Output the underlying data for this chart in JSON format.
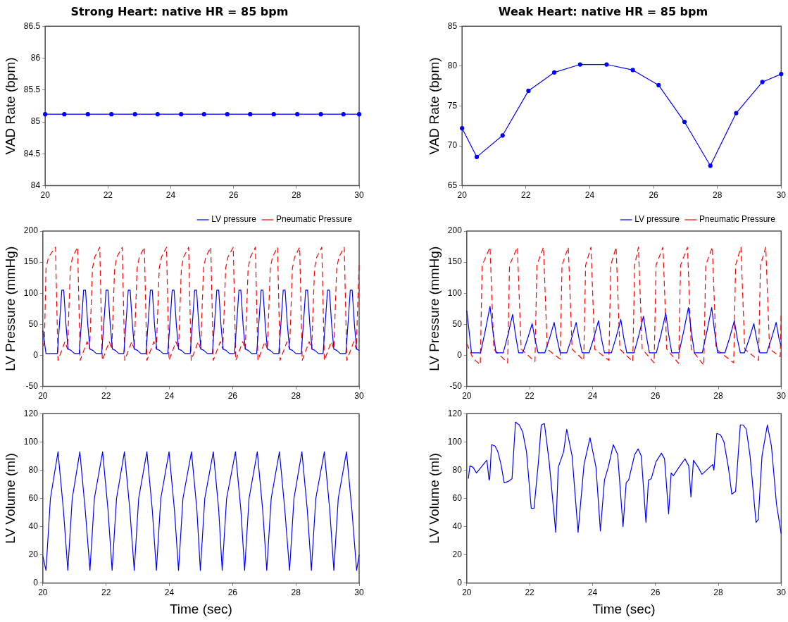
{
  "chart_data": [
    {
      "type": "line",
      "title": "Strong Heart: native HR = 85 bpm",
      "ylabel": "VAD Rate (bpm)",
      "xlim": [
        20,
        30
      ],
      "xticks": [
        20,
        22,
        24,
        26,
        28,
        30
      ],
      "ylim": [
        84,
        86.5
      ],
      "yticks": [
        84,
        84.5,
        85,
        85.5,
        86,
        86.5
      ],
      "grid": false,
      "legend": false,
      "marker": "circle",
      "series": [
        {
          "color": "#0000ff",
          "x": [
            20,
            20.61,
            21.36,
            22.11,
            22.86,
            23.58,
            24.33,
            25.06,
            25.8,
            26.53,
            27.28,
            28.03,
            28.78,
            29.5,
            30
          ],
          "values": [
            85.12,
            85.12,
            85.12,
            85.12,
            85.12,
            85.12,
            85.12,
            85.12,
            85.12,
            85.12,
            85.12,
            85.12,
            85.12,
            85.12,
            85.12
          ]
        }
      ]
    },
    {
      "type": "line",
      "title": "Weak Heart: native HR = 85 bpm",
      "ylabel": "VAD Rate (bpm)",
      "xlim": [
        20,
        30
      ],
      "xticks": [
        20,
        22,
        24,
        26,
        28,
        30
      ],
      "ylim": [
        65,
        85
      ],
      "yticks": [
        65,
        70,
        75,
        80,
        85
      ],
      "grid": false,
      "legend": false,
      "marker": "circle",
      "series": [
        {
          "color": "#0000ff",
          "x": [
            20,
            20.46,
            21.27,
            22.08,
            22.89,
            23.7,
            24.53,
            25.35,
            26.16,
            26.97,
            27.78,
            28.59,
            29.41,
            30
          ],
          "values": [
            72.2,
            68.6,
            71.3,
            76.9,
            79.2,
            80.2,
            80.2,
            79.5,
            77.6,
            73.0,
            67.5,
            74.1,
            78.0,
            79.0
          ]
        }
      ]
    },
    {
      "type": "line",
      "ylabel": "LV Pressure (mmHg)",
      "xlim": [
        20,
        30
      ],
      "xticks": [
        20,
        22,
        24,
        26,
        28,
        30
      ],
      "ylim": [
        -50,
        200
      ],
      "yticks": [
        -50,
        0,
        50,
        100,
        150,
        200
      ],
      "grid": false,
      "legend": "top right",
      "marker": "none",
      "series": [
        {
          "name": "LV pressure",
          "color": "#0000ff",
          "line_style": "solid",
          "x": [
            20,
            20.1,
            20.46,
            20.54,
            20.6,
            20.66,
            20.73,
            20.8,
            20.89,
            21.0,
            21.15,
            21.23,
            21.29,
            21.35,
            21.42,
            21.49,
            21.58,
            21.69,
            21.86,
            21.94,
            22.0,
            22.06,
            22.13,
            22.2,
            22.29,
            22.4,
            22.56,
            22.64,
            22.7,
            22.76,
            22.83,
            22.9,
            22.99,
            23.1,
            23.26,
            23.34,
            23.4,
            23.46,
            23.53,
            23.6,
            23.69,
            23.8,
            23.95,
            24.03,
            24.09,
            24.15,
            24.22,
            24.29,
            24.38,
            24.49,
            24.66,
            24.74,
            24.8,
            24.86,
            24.93,
            25.0,
            25.09,
            25.2,
            25.36,
            25.44,
            25.5,
            25.56,
            25.63,
            25.7,
            25.79,
            25.9,
            26.06,
            26.14,
            26.2,
            26.26,
            26.33,
            26.4,
            26.49,
            26.6,
            26.76,
            26.84,
            26.9,
            26.96,
            27.03,
            27.1,
            27.19,
            27.3,
            27.46,
            27.54,
            27.6,
            27.66,
            27.73,
            27.8,
            27.89,
            28.0,
            28.17,
            28.25,
            28.31,
            28.37,
            28.44,
            28.51,
            28.6,
            28.71,
            28.86,
            28.94,
            29.0,
            29.06,
            29.13,
            29.2,
            29.29,
            29.4,
            29.58,
            29.66,
            29.72,
            29.78,
            29.85,
            29.92,
            30.0
          ],
          "values": [
            40,
            3,
            3,
            60,
            105,
            105,
            50,
            10,
            8,
            3,
            3,
            60,
            105,
            105,
            50,
            10,
            8,
            3,
            3,
            60,
            105,
            105,
            50,
            10,
            8,
            3,
            3,
            60,
            105,
            105,
            50,
            10,
            8,
            3,
            3,
            60,
            105,
            105,
            50,
            10,
            8,
            3,
            3,
            60,
            105,
            105,
            50,
            10,
            8,
            3,
            3,
            60,
            105,
            105,
            50,
            10,
            8,
            3,
            3,
            60,
            105,
            105,
            50,
            10,
            8,
            3,
            3,
            60,
            105,
            105,
            50,
            10,
            8,
            3,
            3,
            60,
            105,
            105,
            50,
            10,
            8,
            3,
            3,
            60,
            105,
            105,
            50,
            10,
            8,
            3,
            3,
            60,
            105,
            105,
            50,
            10,
            8,
            3,
            3,
            60,
            105,
            105,
            50,
            10,
            8,
            3,
            3,
            60,
            105,
            105,
            50,
            10,
            8
          ]
        },
        {
          "name": "Pneumatic Pressure",
          "color": "#ff0000",
          "line_style": "dashed",
          "x": [
            20,
            20.05,
            20.1,
            20.18,
            20.4,
            20.48,
            20.7,
            20.78,
            20.87,
            20.94,
            21.1,
            21.18,
            21.4,
            21.48,
            21.57,
            21.64,
            21.8,
            21.88,
            22.1,
            22.18,
            22.27,
            22.34,
            22.51,
            22.59,
            22.81,
            22.89,
            22.98,
            23.05,
            23.21,
            23.29,
            23.51,
            23.59,
            23.68,
            23.75,
            23.91,
            23.99,
            24.21,
            24.29,
            24.38,
            24.45,
            24.61,
            24.69,
            24.91,
            24.99,
            25.08,
            25.15,
            25.31,
            25.39,
            25.61,
            25.69,
            25.78,
            25.85,
            26.02,
            26.1,
            26.32,
            26.4,
            26.49,
            26.56,
            26.72,
            26.8,
            27.02,
            27.1,
            27.19,
            27.26,
            27.42,
            27.5,
            27.72,
            27.8,
            27.89,
            27.96,
            28.12,
            28.2,
            28.42,
            28.5,
            28.59,
            28.66,
            28.82,
            28.9,
            29.12,
            29.2,
            29.29,
            29.36,
            29.53,
            29.61,
            29.83,
            29.91,
            30.0
          ],
          "values": [
            15,
            20,
            140,
            158,
            174,
            -8,
            22,
            10,
            140,
            158,
            174,
            -8,
            22,
            10,
            140,
            158,
            174,
            -8,
            22,
            10,
            140,
            158,
            174,
            -8,
            22,
            10,
            140,
            158,
            174,
            -8,
            22,
            10,
            140,
            158,
            174,
            -8,
            22,
            10,
            140,
            158,
            174,
            -8,
            22,
            10,
            140,
            158,
            174,
            -8,
            22,
            10,
            140,
            158,
            174,
            -8,
            22,
            10,
            140,
            158,
            174,
            -8,
            22,
            10,
            140,
            158,
            174,
            -8,
            22,
            10,
            140,
            158,
            174,
            -8,
            22,
            10,
            140,
            158,
            174,
            -8,
            22,
            10,
            140,
            158,
            174,
            -8,
            22,
            10,
            150
          ]
        }
      ]
    },
    {
      "type": "line",
      "ylabel": "LV Pressure (mmHg)",
      "xlim": [
        20,
        30
      ],
      "xticks": [
        20,
        22,
        24,
        26,
        28,
        30
      ],
      "ylim": [
        -50,
        200
      ],
      "yticks": [
        -50,
        0,
        50,
        100,
        150,
        200
      ],
      "grid": false,
      "legend": "top right",
      "marker": "none",
      "series": [
        {
          "name": "LV pressure",
          "color": "#0000ff",
          "line_style": "solid",
          "x": [
            20,
            20.05,
            20.15,
            20.44,
            20.59,
            20.74,
            20.83,
            20.93,
            21.16,
            21.31,
            21.46,
            21.55,
            21.65,
            21.78,
            21.93,
            22.08,
            22.17,
            22.27,
            22.48,
            22.63,
            22.78,
            22.87,
            22.97,
            23.18,
            23.33,
            23.48,
            23.57,
            23.67,
            23.89,
            24.04,
            24.19,
            24.28,
            24.38,
            24.6,
            24.75,
            24.9,
            24.99,
            25.09,
            25.32,
            25.47,
            25.62,
            25.71,
            25.81,
            26.03,
            26.18,
            26.33,
            26.42,
            26.52,
            26.75,
            26.9,
            27.05,
            27.14,
            27.24,
            27.49,
            27.64,
            27.79,
            27.88,
            27.98,
            28.21,
            28.36,
            28.51,
            28.6,
            28.7,
            28.83,
            28.98,
            29.13,
            29.22,
            29.32,
            29.54,
            29.69,
            29.84,
            29.93,
            30.0
          ],
          "values": [
            72,
            50,
            4,
            4,
            40,
            79,
            40,
            4,
            4,
            33,
            66,
            33,
            4,
            4,
            26,
            51,
            26,
            4,
            4,
            27,
            53,
            27,
            4,
            4,
            27,
            53,
            27,
            4,
            4,
            28,
            56,
            28,
            4,
            4,
            29,
            58,
            29,
            4,
            4,
            32,
            63,
            32,
            4,
            4,
            34,
            68,
            34,
            4,
            4,
            39,
            77,
            39,
            4,
            4,
            39,
            77,
            39,
            4,
            4,
            28,
            56,
            28,
            4,
            4,
            26,
            51,
            26,
            4,
            4,
            27,
            53,
            27,
            15
          ]
        },
        {
          "name": "Pneumatic Pressure",
          "color": "#ff0000",
          "line_style": "dashed",
          "x": [
            20,
            20.2,
            20.43,
            20.49,
            20.74,
            20.86,
            21.3,
            21.36,
            21.61,
            21.73,
            22.17,
            22.23,
            22.44,
            22.56,
            22.97,
            23.03,
            23.23,
            23.35,
            23.72,
            23.78,
            23.95,
            24.07,
            24.52,
            24.58,
            24.75,
            24.87,
            25.28,
            25.34,
            25.46,
            25.58,
            25.96,
            26.02,
            26.24,
            26.36,
            26.74,
            26.8,
            27.02,
            27.14,
            27.54,
            27.6,
            27.81,
            27.93,
            28.49,
            28.55,
            28.72,
            28.84,
            29.28,
            29.34,
            29.51,
            29.63,
            29.97,
            30.0
          ],
          "values": [
            19,
            -5,
            -15,
            145,
            174,
            10,
            -12,
            145,
            174,
            10,
            -10,
            145,
            174,
            10,
            -6,
            145,
            174,
            10,
            -8,
            145,
            174,
            10,
            -8,
            145,
            174,
            10,
            -10,
            145,
            174,
            10,
            -12,
            145,
            174,
            10,
            -13,
            145,
            174,
            10,
            -16,
            145,
            174,
            10,
            -12,
            145,
            174,
            10,
            -8,
            145,
            174,
            10,
            -2,
            70
          ]
        }
      ]
    },
    {
      "type": "line",
      "ylabel": "LV Volume (ml)",
      "xlabel": "Time (sec)",
      "xlim": [
        20,
        30
      ],
      "xticks": [
        20,
        22,
        24,
        26,
        28,
        30
      ],
      "ylim": [
        0,
        120
      ],
      "yticks": [
        0,
        20,
        40,
        60,
        80,
        100,
        120
      ],
      "grid": false,
      "legend": false,
      "marker": "none",
      "series": [
        {
          "color": "#0000ff",
          "x": [
            20.0,
            20.1,
            20.24,
            20.48,
            20.65,
            20.79,
            20.93,
            21.17,
            21.34,
            21.49,
            21.63,
            21.89,
            22.06,
            22.19,
            22.33,
            22.58,
            22.75,
            22.89,
            23.03,
            23.29,
            23.46,
            23.59,
            23.73,
            23.99,
            24.16,
            24.29,
            24.43,
            24.7,
            24.87,
            24.98,
            25.12,
            25.39,
            25.56,
            25.67,
            25.81,
            26.09,
            26.26,
            26.38,
            26.52,
            26.78,
            26.95,
            27.08,
            27.22,
            27.48,
            27.65,
            27.8,
            27.94,
            28.19,
            28.36,
            28.49,
            28.63,
            28.9,
            29.07,
            29.2,
            29.34,
            29.6,
            29.77,
            29.92,
            30.0
          ],
          "values": [
            19,
            9,
            60,
            93,
            52,
            9,
            60,
            93,
            52,
            9,
            60,
            93,
            52,
            9,
            60,
            93,
            52,
            9,
            60,
            93,
            52,
            9,
            60,
            93,
            52,
            9,
            60,
            93,
            52,
            9,
            60,
            93,
            52,
            9,
            60,
            93,
            52,
            9,
            60,
            93,
            52,
            9,
            60,
            93,
            52,
            9,
            60,
            93,
            52,
            9,
            60,
            93,
            52,
            9,
            60,
            93,
            52,
            9,
            20
          ]
        }
      ]
    },
    {
      "type": "line",
      "ylabel": "LV Volume (ml)",
      "xlabel": "Time (sec)",
      "xlim": [
        20,
        30
      ],
      "xticks": [
        20,
        22,
        24,
        26,
        28,
        30
      ],
      "ylim": [
        0,
        120
      ],
      "yticks": [
        0,
        20,
        40,
        60,
        80,
        100,
        120
      ],
      "grid": false,
      "legend": false,
      "marker": "none",
      "series": [
        {
          "color": "#0000ff",
          "x": [
            20.05,
            20.1,
            20.2,
            20.31,
            20.6,
            20.64,
            20.71,
            20.73,
            20.79,
            20.9,
            20.99,
            21.09,
            21.19,
            21.32,
            21.44,
            21.55,
            21.67,
            21.78,
            21.9,
            22.05,
            22.14,
            22.28,
            22.37,
            22.47,
            22.62,
            22.83,
            22.91,
            23.08,
            23.18,
            23.35,
            23.54,
            23.73,
            23.92,
            24.11,
            24.25,
            24.38,
            24.5,
            24.66,
            24.8,
            24.97,
            25.07,
            25.15,
            25.34,
            25.45,
            25.55,
            25.7,
            25.78,
            25.87,
            26.02,
            26.19,
            26.29,
            26.42,
            26.5,
            26.57,
            26.75,
            26.94,
            27.06,
            27.13,
            27.21,
            27.36,
            27.48,
            27.82,
            27.86,
            27.95,
            28.07,
            28.18,
            28.32,
            28.43,
            28.55,
            28.7,
            28.79,
            28.89,
            29.01,
            29.2,
            29.27,
            29.39,
            29.56,
            29.69,
            29.85,
            30.0
          ],
          "values": [
            74,
            83,
            82,
            78,
            86,
            87,
            73,
            74,
            98,
            97,
            93,
            84,
            71,
            72,
            74,
            114,
            112,
            107,
            93,
            53,
            53,
            86,
            112,
            113,
            86,
            36,
            82,
            93,
            109,
            90,
            36,
            84,
            103,
            82,
            37,
            73,
            82,
            98,
            91,
            40,
            71,
            73,
            91,
            95,
            90,
            43,
            73,
            74,
            86,
            92,
            88,
            49,
            78,
            76,
            82,
            88,
            83,
            61,
            87,
            82,
            77,
            84,
            80,
            106,
            105,
            100,
            82,
            63,
            65,
            112,
            112,
            109,
            90,
            43,
            45,
            90,
            112,
            97,
            56,
            35
          ]
        }
      ]
    }
  ]
}
